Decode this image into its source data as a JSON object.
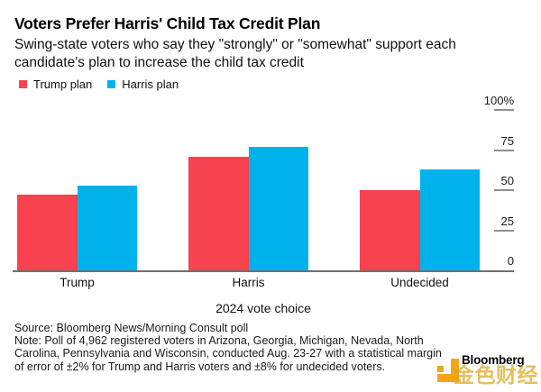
{
  "header": {
    "title": "Voters Prefer Harris' Child Tax Credit Plan",
    "subtitle": "Swing-state voters who say they \"strongly\" or \"somewhat\" support each candidate's plan to increase the child tax credit"
  },
  "chart_data": {
    "type": "bar",
    "categories": [
      "Trump",
      "Harris",
      "Undecided"
    ],
    "series": [
      {
        "name": "Trump plan",
        "color": "#f9424f",
        "values": [
          47,
          71,
          50
        ]
      },
      {
        "name": "Harris plan",
        "color": "#00b2ec",
        "values": [
          53,
          77,
          63
        ]
      }
    ],
    "xlabel": "2024 vote choice",
    "ylabel": "",
    "ylim": [
      0,
      100
    ],
    "yticks": [
      0,
      25,
      50,
      75,
      100
    ],
    "ytick_labels": [
      "0",
      "25",
      "50",
      "75",
      "100%"
    ],
    "legend_position": "top-left",
    "axis_side": "right",
    "grid": false
  },
  "footer": {
    "source": "Source: Bloomberg News/Morning Consult poll",
    "note": "Note: Poll of 4,962 registered voters in Arizona, Georgia, Michigan, Nevada, North Carolina, Pennsylvania and Wisconsin, conducted Aug. 23-27 with a statistical margin of error of ±2% for Trump and Harris voters and ±8% for undecided voters."
  },
  "branding": {
    "logo_text": "Bloomberg",
    "watermark_text": "金色财经",
    "logo_color": "#f3a41c",
    "watermark_color": "#dba722"
  },
  "colors": {
    "axis_line": "#6f6f6f",
    "tick": "#8f8f8f",
    "text": "#111111"
  }
}
